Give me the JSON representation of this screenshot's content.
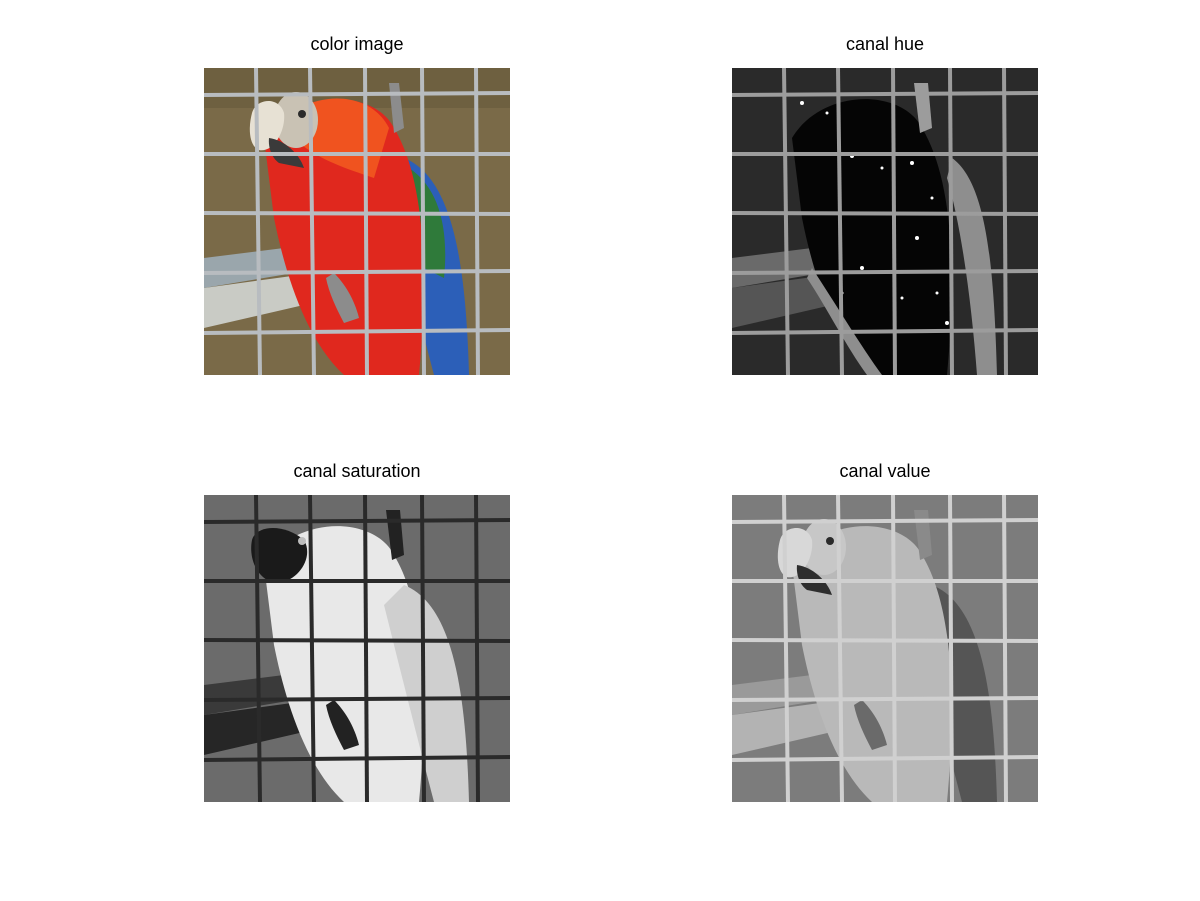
{
  "figure": {
    "panels": [
      {
        "id": "color",
        "title": "color image"
      },
      {
        "id": "hue",
        "title": "canal hue"
      },
      {
        "id": "saturation",
        "title": "canal saturation"
      },
      {
        "id": "value",
        "title": "canal value"
      }
    ]
  },
  "colors": {
    "background": "#ffffff",
    "wall_color": "#7a6a48",
    "parrot_red": "#e0281e",
    "wing_blue": "#2c5fb8",
    "wing_green": "#2f7a3a",
    "cage_wire_color": "#b8bcc0",
    "hue_background": "#2a2a2a",
    "saturation_background": "#6b6b6b",
    "value_background": "#7c7c7c"
  }
}
